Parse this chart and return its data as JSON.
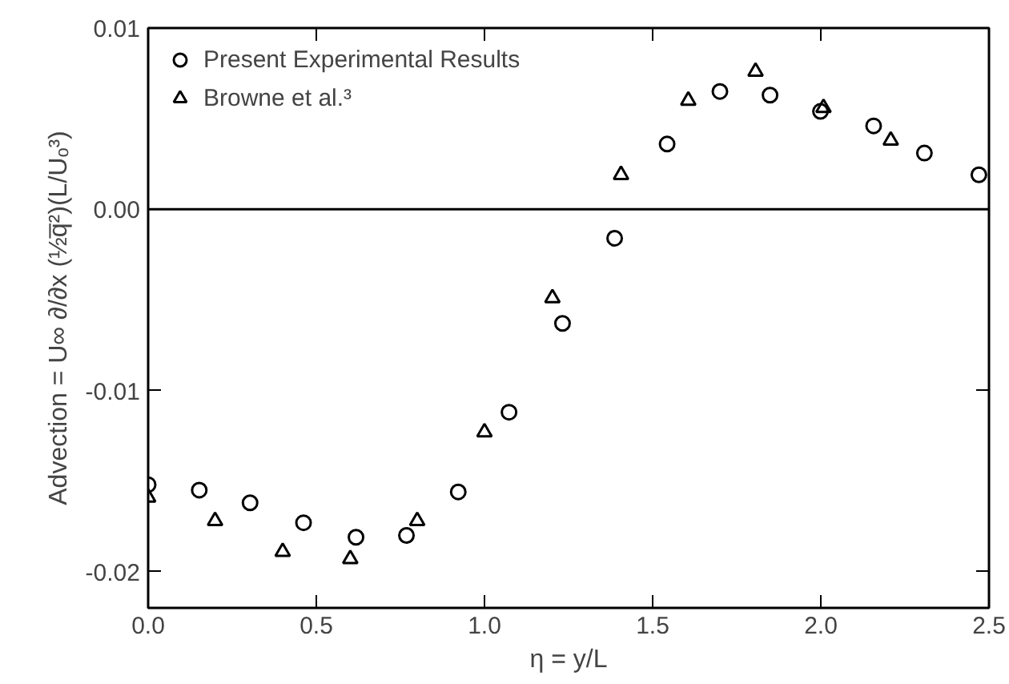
{
  "chart_data": {
    "type": "scatter",
    "xlabel": "η = y/L",
    "ylabel": "Advection = U∞ ∂/∂x (½q̅²)(L/Uₒ³)",
    "xlim": [
      0,
      2.5
    ],
    "ylim": [
      -0.022,
      0.01
    ],
    "xticks": [
      {
        "value": 0,
        "label": "0.0"
      },
      {
        "value": 0.5,
        "label": "0.5"
      },
      {
        "value": 1,
        "label": "1.0"
      },
      {
        "value": 1.5,
        "label": "1.5"
      },
      {
        "value": 2,
        "label": "2.0"
      },
      {
        "value": 2.5,
        "label": "2.5"
      }
    ],
    "yticks": [
      {
        "value": -0.02,
        "label": "-0.02"
      },
      {
        "value": -0.01,
        "label": "-0.01"
      },
      {
        "value": 0,
        "label": "0.00"
      },
      {
        "value": 0.01,
        "label": "0.01"
      }
    ],
    "grid": false,
    "legend": "top left",
    "ref_lines": [
      {
        "axis": "y",
        "value": 0,
        "color": "#000000",
        "line_style": "solid"
      }
    ],
    "series": [
      {
        "name": "Present Experimental Results",
        "color": "#000000",
        "marker": "circle",
        "x": [
          0,
          0.152,
          0.303,
          0.462,
          0.618,
          0.768,
          0.922,
          1.073,
          1.232,
          1.387,
          1.543,
          1.7,
          1.849,
          1.999,
          2.157,
          2.308,
          2.47
        ],
        "values": [
          -0.0152,
          -0.0155,
          -0.0162,
          -0.0173,
          -0.0181,
          -0.018,
          -0.0156,
          -0.0112,
          -0.0063,
          -0.0016,
          0.0036,
          0.0065,
          0.0063,
          0.0054,
          0.0046,
          0.0031,
          0.0019
        ]
      },
      {
        "name": "Browne et al.³",
        "color": "#000000",
        "marker": "triangle",
        "x": [
          0,
          0.199,
          0.4,
          0.601,
          0.8,
          1.0,
          1.202,
          1.406,
          1.606,
          1.806,
          2.008,
          2.208
        ],
        "values": [
          -0.0159,
          -0.0172,
          -0.0189,
          -0.0193,
          -0.0172,
          -0.0123,
          -0.0049,
          0.0019,
          0.006,
          0.0076,
          0.0056,
          0.0038
        ]
      }
    ]
  }
}
